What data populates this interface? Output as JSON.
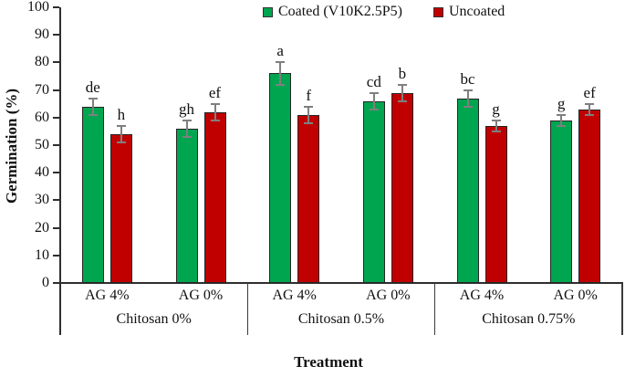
{
  "figure": {
    "y_axis_title": "Germination (%)",
    "x_axis_title": "Treatment"
  },
  "chart_data": {
    "type": "bar",
    "title": "",
    "ylabel": "Germination (%)",
    "xlabel": "Treatment",
    "ylim": [
      0,
      100
    ],
    "yticks": [
      0,
      10,
      20,
      30,
      40,
      50,
      60,
      70,
      80,
      90,
      100
    ],
    "grid": false,
    "legend_position": "top-center",
    "error_bar_color": "#7f7f7f",
    "series": [
      {
        "name": "Coated (V10K2.5P5)",
        "color": "#00A550"
      },
      {
        "name": "Uncoated",
        "color": "#C00000"
      }
    ],
    "groups": [
      {
        "label": "Chitosan 0%",
        "subgroups": [
          {
            "label": "AG 4%",
            "values": [
              64,
              54
            ],
            "errors": [
              3,
              3
            ],
            "letters": [
              "de",
              "h"
            ]
          },
          {
            "label": "AG 0%",
            "values": [
              56,
              62
            ],
            "errors": [
              3,
              3
            ],
            "letters": [
              "gh",
              "ef"
            ]
          }
        ]
      },
      {
        "label": "Chitosan 0.5%",
        "subgroups": [
          {
            "label": "AG 4%",
            "values": [
              76,
              61
            ],
            "errors": [
              4,
              3
            ],
            "letters": [
              "a",
              "f"
            ]
          },
          {
            "label": "AG 0%",
            "values": [
              66,
              69
            ],
            "errors": [
              3,
              3
            ],
            "letters": [
              "cd",
              "b"
            ]
          }
        ]
      },
      {
        "label": "Chitosan 0.75%",
        "subgroups": [
          {
            "label": "AG 4%",
            "values": [
              67,
              57
            ],
            "errors": [
              3,
              2
            ],
            "letters": [
              "bc",
              "g"
            ]
          },
          {
            "label": "AG 0%",
            "values": [
              59,
              63
            ],
            "errors": [
              2,
              2
            ],
            "letters": [
              "g",
              "ef"
            ]
          }
        ]
      }
    ]
  }
}
